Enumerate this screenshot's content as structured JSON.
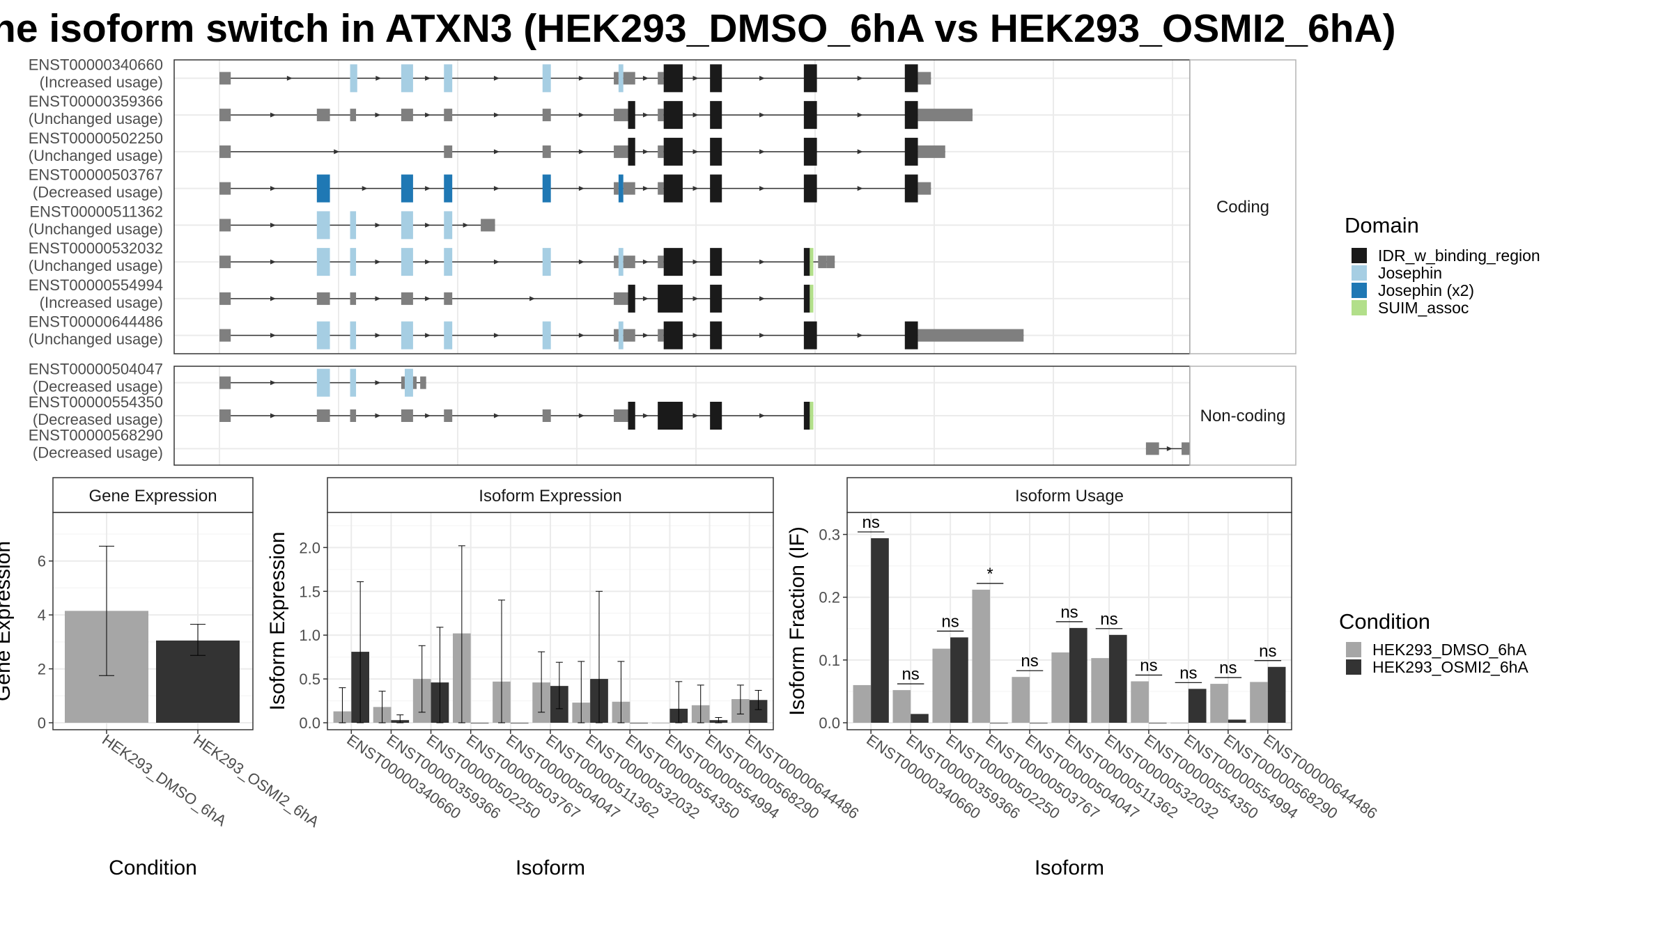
{
  "title": "he isoform switch in ATXN3 (HEK293_DMSO_6hA vs HEK293_OSMI2_6hA)",
  "domain_colors": {
    "IDR_w_binding_region": "#1a1a1a",
    "Josephin": "#a6cee3",
    "Josephin (x2)": "#1f78b4",
    "SUIM_assoc": "#b2df8a",
    "none": "#7f7f7f"
  },
  "legends": {
    "domain_title": "Domain",
    "domain_items": [
      "IDR_w_binding_region",
      "Josephin",
      "Josephin (x2)",
      "SUIM_assoc"
    ],
    "condition_title": "Condition",
    "condition_items": [
      {
        "name": "HEK293_DMSO_6hA",
        "color": "#a6a6a6"
      },
      {
        "name": "HEK293_OSMI2_6hA",
        "color": "#333333"
      }
    ]
  },
  "structure": {
    "coding_label": "Coding",
    "noncoding_label": "Non-coding",
    "coding": [
      {
        "id": "ENST00000340660",
        "usage": "(Increased usage)",
        "exons": [
          {
            "s": 0.0,
            "e": 0.95,
            "d": "none"
          },
          {
            "s": 11.0,
            "e": 11.6,
            "d": "Josephin"
          },
          {
            "s": 15.3,
            "e": 16.3,
            "d": "Josephin"
          },
          {
            "s": 18.9,
            "e": 19.6,
            "d": "Josephin"
          },
          {
            "s": 27.2,
            "e": 27.9,
            "d": "Josephin"
          },
          {
            "s": 33.2,
            "e": 33.6,
            "d": "none"
          },
          {
            "s": 33.6,
            "e": 34.0,
            "d": "Josephin"
          },
          {
            "s": 34.0,
            "e": 35.0,
            "d": "none"
          },
          {
            "s": 36.9,
            "e": 37.4,
            "d": "none"
          },
          {
            "s": 37.4,
            "e": 39.0,
            "d": "IDR_w_binding_region"
          },
          {
            "s": 41.3,
            "e": 42.3,
            "d": "IDR_w_binding_region"
          },
          {
            "s": 49.2,
            "e": 50.3,
            "d": "IDR_w_binding_region"
          },
          {
            "s": 57.7,
            "e": 58.8,
            "d": "IDR_w_binding_region"
          },
          {
            "s": 58.8,
            "e": 59.9,
            "d": "none"
          }
        ]
      },
      {
        "id": "ENST00000359366",
        "usage": "(Unchanged usage)",
        "exons": [
          {
            "s": 0.0,
            "e": 0.95,
            "d": "none"
          },
          {
            "s": 8.2,
            "e": 9.3,
            "d": "none"
          },
          {
            "s": 11.0,
            "e": 11.5,
            "d": "none"
          },
          {
            "s": 15.3,
            "e": 16.3,
            "d": "none"
          },
          {
            "s": 18.9,
            "e": 19.6,
            "d": "none"
          },
          {
            "s": 27.2,
            "e": 27.9,
            "d": "none"
          },
          {
            "s": 33.2,
            "e": 34.4,
            "d": "none"
          },
          {
            "s": 34.4,
            "e": 35.0,
            "d": "IDR_w_binding_region"
          },
          {
            "s": 36.9,
            "e": 37.4,
            "d": "none"
          },
          {
            "s": 37.4,
            "e": 39.0,
            "d": "IDR_w_binding_region"
          },
          {
            "s": 41.3,
            "e": 42.3,
            "d": "IDR_w_binding_region"
          },
          {
            "s": 49.2,
            "e": 50.3,
            "d": "IDR_w_binding_region"
          },
          {
            "s": 57.7,
            "e": 58.8,
            "d": "IDR_w_binding_region"
          },
          {
            "s": 58.8,
            "e": 63.4,
            "d": "none"
          }
        ]
      },
      {
        "id": "ENST00000502250",
        "usage": "(Unchanged usage)",
        "exons": [
          {
            "s": 0.0,
            "e": 0.95,
            "d": "none"
          },
          {
            "s": 18.9,
            "e": 19.6,
            "d": "none"
          },
          {
            "s": 27.2,
            "e": 27.9,
            "d": "none"
          },
          {
            "s": 33.2,
            "e": 34.4,
            "d": "none"
          },
          {
            "s": 34.4,
            "e": 35.0,
            "d": "IDR_w_binding_region"
          },
          {
            "s": 36.9,
            "e": 37.4,
            "d": "none"
          },
          {
            "s": 37.4,
            "e": 39.0,
            "d": "IDR_w_binding_region"
          },
          {
            "s": 41.3,
            "e": 42.3,
            "d": "IDR_w_binding_region"
          },
          {
            "s": 49.2,
            "e": 50.3,
            "d": "IDR_w_binding_region"
          },
          {
            "s": 57.7,
            "e": 58.8,
            "d": "IDR_w_binding_region"
          },
          {
            "s": 58.8,
            "e": 61.1,
            "d": "none"
          }
        ]
      },
      {
        "id": "ENST00000503767",
        "usage": "(Decreased usage)",
        "exons": [
          {
            "s": 0.0,
            "e": 0.95,
            "d": "none"
          },
          {
            "s": 8.2,
            "e": 9.3,
            "d": "Josephin (x2)"
          },
          {
            "s": 15.3,
            "e": 16.3,
            "d": "Josephin (x2)"
          },
          {
            "s": 18.9,
            "e": 19.6,
            "d": "Josephin (x2)"
          },
          {
            "s": 27.2,
            "e": 27.9,
            "d": "Josephin (x2)"
          },
          {
            "s": 33.2,
            "e": 33.6,
            "d": "none"
          },
          {
            "s": 33.6,
            "e": 34.0,
            "d": "Josephin (x2)"
          },
          {
            "s": 34.0,
            "e": 35.0,
            "d": "none"
          },
          {
            "s": 36.9,
            "e": 37.4,
            "d": "none"
          },
          {
            "s": 37.4,
            "e": 39.0,
            "d": "IDR_w_binding_region"
          },
          {
            "s": 41.3,
            "e": 42.3,
            "d": "IDR_w_binding_region"
          },
          {
            "s": 49.2,
            "e": 50.3,
            "d": "IDR_w_binding_region"
          },
          {
            "s": 57.7,
            "e": 58.8,
            "d": "IDR_w_binding_region"
          },
          {
            "s": 58.8,
            "e": 59.9,
            "d": "none"
          }
        ]
      },
      {
        "id": "ENST00000511362",
        "usage": "(Unchanged usage)",
        "exons": [
          {
            "s": 0.0,
            "e": 0.95,
            "d": "none"
          },
          {
            "s": 8.2,
            "e": 9.3,
            "d": "Josephin"
          },
          {
            "s": 11.0,
            "e": 11.5,
            "d": "Josephin"
          },
          {
            "s": 15.3,
            "e": 16.3,
            "d": "Josephin"
          },
          {
            "s": 18.9,
            "e": 19.6,
            "d": "Josephin"
          },
          {
            "s": 22.0,
            "e": 22.2,
            "d": "none"
          },
          {
            "s": 22.2,
            "e": 23.2,
            "d": "none"
          }
        ]
      },
      {
        "id": "ENST00000532032",
        "usage": "(Unchanged usage)",
        "exons": [
          {
            "s": 0.0,
            "e": 0.95,
            "d": "none"
          },
          {
            "s": 8.2,
            "e": 9.3,
            "d": "Josephin"
          },
          {
            "s": 11.0,
            "e": 11.5,
            "d": "Josephin"
          },
          {
            "s": 15.3,
            "e": 16.3,
            "d": "Josephin"
          },
          {
            "s": 18.9,
            "e": 19.6,
            "d": "Josephin"
          },
          {
            "s": 27.2,
            "e": 27.9,
            "d": "Josephin"
          },
          {
            "s": 33.2,
            "e": 33.6,
            "d": "none"
          },
          {
            "s": 33.6,
            "e": 34.0,
            "d": "Josephin"
          },
          {
            "s": 34.0,
            "e": 35.0,
            "d": "none"
          },
          {
            "s": 36.9,
            "e": 37.4,
            "d": "none"
          },
          {
            "s": 37.4,
            "e": 39.0,
            "d": "IDR_w_binding_region"
          },
          {
            "s": 41.3,
            "e": 42.3,
            "d": "IDR_w_binding_region"
          },
          {
            "s": 49.2,
            "e": 49.7,
            "d": "IDR_w_binding_region"
          },
          {
            "s": 49.7,
            "e": 50.0,
            "d": "SUIM_assoc"
          },
          {
            "s": 50.4,
            "e": 51.1,
            "d": "none"
          },
          {
            "s": 51.1,
            "e": 51.8,
            "d": "none"
          }
        ]
      },
      {
        "id": "ENST00000554994",
        "usage": "(Increased usage)",
        "exons": [
          {
            "s": 0.0,
            "e": 0.95,
            "d": "none"
          },
          {
            "s": 8.2,
            "e": 9.3,
            "d": "none"
          },
          {
            "s": 11.0,
            "e": 11.5,
            "d": "none"
          },
          {
            "s": 15.3,
            "e": 16.3,
            "d": "none"
          },
          {
            "s": 18.9,
            "e": 19.6,
            "d": "none"
          },
          {
            "s": 33.2,
            "e": 34.4,
            "d": "none"
          },
          {
            "s": 34.4,
            "e": 35.0,
            "d": "IDR_w_binding_region"
          },
          {
            "s": 36.9,
            "e": 39.0,
            "d": "IDR_w_binding_region"
          },
          {
            "s": 41.3,
            "e": 42.3,
            "d": "IDR_w_binding_region"
          },
          {
            "s": 49.2,
            "e": 49.7,
            "d": "IDR_w_binding_region"
          },
          {
            "s": 49.7,
            "e": 50.0,
            "d": "SUIM_assoc"
          }
        ]
      },
      {
        "id": "ENST00000644486",
        "usage": "(Unchanged usage)",
        "exons": [
          {
            "s": 0.0,
            "e": 0.95,
            "d": "none"
          },
          {
            "s": 8.2,
            "e": 9.3,
            "d": "Josephin"
          },
          {
            "s": 11.0,
            "e": 11.5,
            "d": "Josephin"
          },
          {
            "s": 15.3,
            "e": 16.3,
            "d": "Josephin"
          },
          {
            "s": 18.9,
            "e": 19.6,
            "d": "Josephin"
          },
          {
            "s": 27.2,
            "e": 27.9,
            "d": "Josephin"
          },
          {
            "s": 33.2,
            "e": 33.6,
            "d": "none"
          },
          {
            "s": 33.6,
            "e": 34.0,
            "d": "Josephin"
          },
          {
            "s": 34.0,
            "e": 35.0,
            "d": "none"
          },
          {
            "s": 36.9,
            "e": 37.4,
            "d": "none"
          },
          {
            "s": 37.4,
            "e": 39.0,
            "d": "IDR_w_binding_region"
          },
          {
            "s": 41.3,
            "e": 42.3,
            "d": "IDR_w_binding_region"
          },
          {
            "s": 49.2,
            "e": 50.3,
            "d": "IDR_w_binding_region"
          },
          {
            "s": 57.7,
            "e": 58.8,
            "d": "IDR_w_binding_region"
          },
          {
            "s": 58.8,
            "e": 67.7,
            "d": "none"
          }
        ]
      }
    ],
    "noncoding": [
      {
        "id": "ENST00000504047",
        "usage": "(Decreased usage)",
        "exons": [
          {
            "s": 0.0,
            "e": 0.95,
            "d": "none"
          },
          {
            "s": 8.2,
            "e": 9.3,
            "d": "Josephin"
          },
          {
            "s": 11.0,
            "e": 11.5,
            "d": "Josephin"
          },
          {
            "s": 15.3,
            "e": 15.6,
            "d": "none"
          },
          {
            "s": 15.6,
            "e": 16.3,
            "d": "Josephin"
          },
          {
            "s": 16.3,
            "e": 16.6,
            "d": "none"
          },
          {
            "s": 16.9,
            "e": 17.4,
            "d": "none"
          }
        ]
      },
      {
        "id": "ENST00000554350",
        "usage": "(Decreased usage)",
        "exons": [
          {
            "s": 0.0,
            "e": 0.95,
            "d": "none"
          },
          {
            "s": 8.2,
            "e": 9.3,
            "d": "none"
          },
          {
            "s": 11.0,
            "e": 11.5,
            "d": "none"
          },
          {
            "s": 15.3,
            "e": 16.3,
            "d": "none"
          },
          {
            "s": 18.9,
            "e": 19.6,
            "d": "none"
          },
          {
            "s": 27.2,
            "e": 27.9,
            "d": "none"
          },
          {
            "s": 33.2,
            "e": 34.4,
            "d": "none"
          },
          {
            "s": 34.4,
            "e": 35.0,
            "d": "IDR_w_binding_region"
          },
          {
            "s": 36.9,
            "e": 39.0,
            "d": "IDR_w_binding_region"
          },
          {
            "s": 41.3,
            "e": 42.3,
            "d": "IDR_w_binding_region"
          },
          {
            "s": 49.2,
            "e": 49.7,
            "d": "IDR_w_binding_region"
          },
          {
            "s": 49.7,
            "e": 50.0,
            "d": "SUIM_assoc"
          }
        ]
      },
      {
        "id": "ENST00000568290",
        "usage": "(Decreased usage)",
        "exons": [
          {
            "s": 78.0,
            "e": 79.1,
            "d": "none"
          },
          {
            "s": 81.0,
            "e": 82.0,
            "d": "none"
          },
          {
            "s": 85.0,
            "e": 86.0,
            "d": "none"
          }
        ]
      }
    ]
  },
  "chart_data": [
    {
      "type": "bar",
      "title": "Gene Expression",
      "xlabel": "Condition",
      "ylabel": "Gene Expression",
      "ylim": [
        0,
        7.8
      ],
      "yticks": [
        "0",
        "2",
        "4",
        "6"
      ],
      "categories": [
        "HEK293_DMSO_6hA",
        "HEK293_OSMI2_6hA"
      ],
      "values": [
        4.15,
        3.05
      ],
      "error_low": [
        1.75,
        2.5
      ],
      "error_high": [
        6.55,
        3.65
      ]
    },
    {
      "type": "bar",
      "title": "Isoform Expression",
      "xlabel": "Isoform",
      "ylabel": "Isoform Expression",
      "ylim": [
        0,
        2.4
      ],
      "yticks": [
        "0.0",
        "0.5",
        "1.0",
        "1.5",
        "2.0"
      ],
      "categories": [
        "ENST00000340660",
        "ENST00000359366",
        "ENST00000502250",
        "ENST00000503767",
        "ENST00000504047",
        "ENST00000511362",
        "ENST00000532032",
        "ENST00000554350",
        "ENST00000554994",
        "ENST00000568290",
        "ENST00000644486"
      ],
      "series": [
        {
          "name": "HEK293_DMSO_6hA",
          "values": [
            0.13,
            0.18,
            0.5,
            1.02,
            0.47,
            0.46,
            0.23,
            0.24,
            0.0,
            0.2,
            0.27
          ],
          "error_low": [
            0.0,
            0.0,
            0.12,
            0.0,
            0.0,
            0.12,
            0.0,
            0.0,
            0.0,
            0.0,
            0.1
          ],
          "error_high": [
            0.4,
            0.36,
            0.88,
            2.02,
            1.4,
            0.81,
            0.7,
            0.7,
            0.0,
            0.43,
            0.43
          ]
        },
        {
          "name": "HEK293_OSMI2_6hA",
          "values": [
            0.81,
            0.03,
            0.46,
            0.0,
            0.0,
            0.42,
            0.5,
            0.0,
            0.16,
            0.03,
            0.26
          ],
          "error_low": [
            0.0,
            0.0,
            0.0,
            0.0,
            0.0,
            0.16,
            0.0,
            0.0,
            0.0,
            0.0,
            0.15
          ],
          "error_high": [
            1.61,
            0.09,
            1.09,
            0.0,
            0.0,
            0.69,
            1.5,
            0.0,
            0.47,
            0.06,
            0.37
          ]
        }
      ]
    },
    {
      "type": "bar",
      "title": "Isoform Usage",
      "xlabel": "Isoform",
      "ylabel": "Isoform Fraction (IF)",
      "ylim": [
        0,
        0.335
      ],
      "yticks": [
        "0.0",
        "0.1",
        "0.2",
        "0.3"
      ],
      "categories": [
        "ENST00000340660",
        "ENST00000359366",
        "ENST00000502250",
        "ENST00000503767",
        "ENST00000504047",
        "ENST00000511362",
        "ENST00000532032",
        "ENST00000554350",
        "ENST00000554994",
        "ENST00000568290",
        "ENST00000644486"
      ],
      "series": [
        {
          "name": "HEK293_DMSO_6hA",
          "values": [
            0.06,
            0.052,
            0.118,
            0.212,
            0.073,
            0.112,
            0.103,
            0.066,
            0.0,
            0.062,
            0.065
          ]
        },
        {
          "name": "HEK293_OSMI2_6hA",
          "values": [
            0.294,
            0.014,
            0.136,
            0.0,
            0.0,
            0.151,
            0.14,
            0.0,
            0.054,
            0.005,
            0.089
          ]
        }
      ],
      "significance": [
        "ns",
        "ns",
        "ns",
        "*",
        "ns",
        "ns",
        "ns",
        "ns",
        "ns",
        "ns",
        "ns"
      ]
    }
  ]
}
